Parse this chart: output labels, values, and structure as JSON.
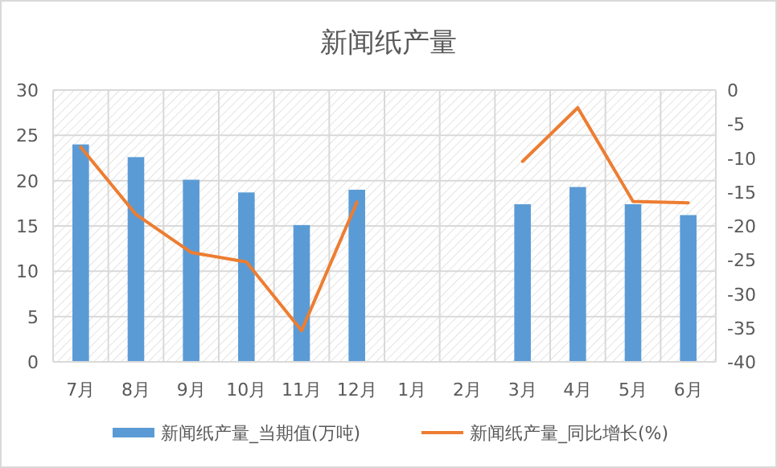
{
  "chart_data": {
    "type": "bar",
    "title": "新闻纸产量",
    "categories": [
      "7月",
      "8月",
      "9月",
      "10月",
      "11月",
      "12月",
      "1月",
      "2月",
      "3月",
      "4月",
      "5月",
      "6月"
    ],
    "series": [
      {
        "name": "新闻纸产量_当期值(万吨)",
        "color": "#5b9bd5",
        "values": [
          24.0,
          22.6,
          20.1,
          18.7,
          15.1,
          19.0,
          null,
          null,
          17.4,
          19.3,
          17.4,
          16.2
        ]
      },
      {
        "name": "新闻纸产量_同比增长(%)",
        "type": "line",
        "axis": "y2",
        "color": "#ed7d31",
        "values": [
          -8.4,
          -18.3,
          -23.9,
          -25.3,
          -35.4,
          -16.5,
          null,
          null,
          -10.5,
          -2.6,
          -16.4,
          -16.6
        ]
      }
    ],
    "ylim": [
      0,
      30
    ],
    "yticks": [
      0,
      5,
      10,
      15,
      20,
      25,
      30
    ],
    "y2lim": [
      -40,
      0
    ],
    "y2ticks": [
      -40,
      -35,
      -30,
      -25,
      -20,
      -15,
      -10,
      -5,
      0
    ],
    "grid": true,
    "legend": "bottom"
  }
}
